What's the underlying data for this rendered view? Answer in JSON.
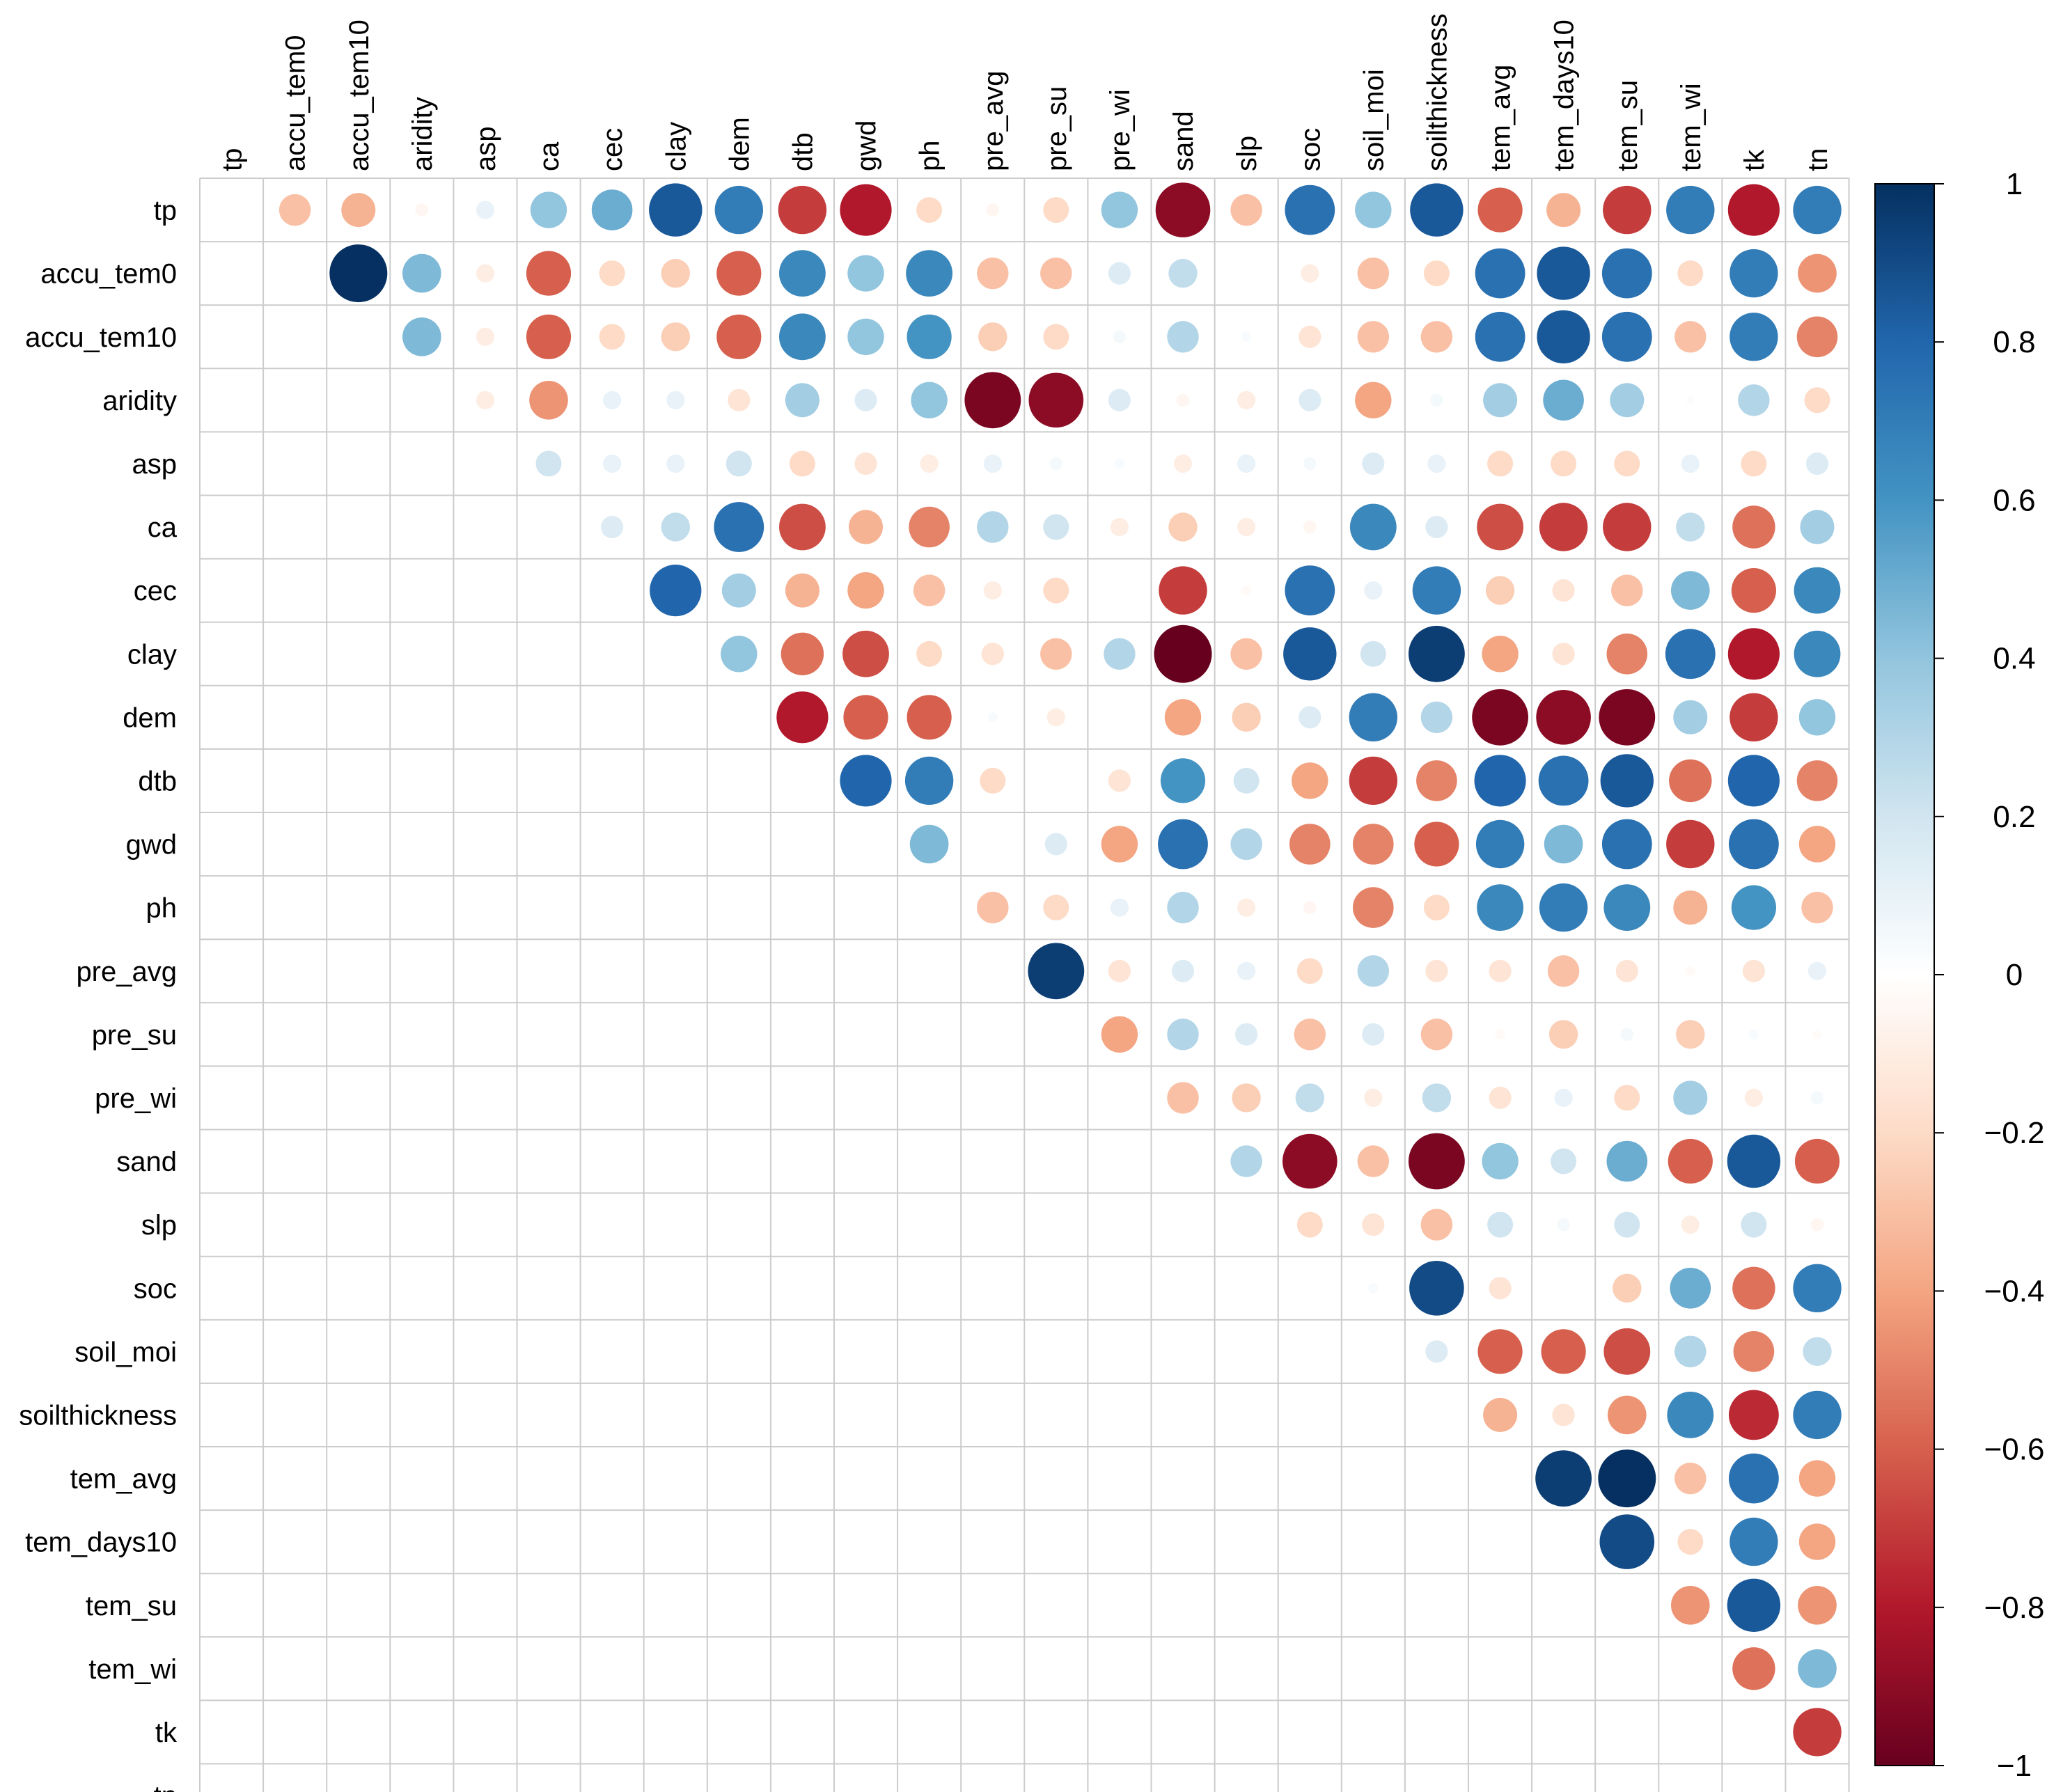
{
  "chart_data": {
    "type": "heatmap",
    "subtype": "correlation-matrix-circles-upper",
    "title": "",
    "variables": [
      "tp",
      "accu_tem0",
      "accu_tem10",
      "aridity",
      "asp",
      "ca",
      "cec",
      "clay",
      "dem",
      "dtb",
      "gwd",
      "ph",
      "pre_avg",
      "pre_su",
      "pre_wi",
      "sand",
      "slp",
      "soc",
      "soil_moi",
      "soilthickness",
      "tem_avg",
      "tem_days10",
      "tem_su",
      "tem_wi",
      "tk",
      "tn"
    ],
    "matrix": [
      [
        1,
        -0.3,
        -0.35,
        -0.05,
        0.1,
        0.4,
        0.5,
        0.85,
        0.7,
        -0.7,
        -0.8,
        -0.2,
        -0.05,
        -0.2,
        0.4,
        -0.9,
        -0.3,
        0.75,
        0.4,
        0.85,
        -0.6,
        -0.35,
        -0.7,
        0.7,
        -0.8,
        0.7
      ],
      [
        -0.3,
        1,
        1,
        0.45,
        -0.1,
        -0.6,
        -0.2,
        -0.25,
        -0.6,
        0.65,
        0.4,
        0.65,
        -0.3,
        -0.3,
        0.15,
        0.25,
        0,
        -0.1,
        -0.3,
        -0.2,
        0.75,
        0.85,
        0.75,
        -0.2,
        0.7,
        -0.45
      ],
      [
        -0.35,
        1,
        1,
        0.45,
        -0.1,
        -0.6,
        -0.2,
        -0.25,
        -0.6,
        0.65,
        0.4,
        0.6,
        -0.25,
        -0.2,
        0.05,
        0.3,
        0.03,
        -0.15,
        -0.3,
        -0.3,
        0.75,
        0.85,
        0.75,
        -0.3,
        0.7,
        -0.5
      ],
      [
        -0.05,
        0.45,
        0.45,
        1,
        -0.1,
        -0.45,
        0.1,
        0.1,
        -0.15,
        0.35,
        0.15,
        0.4,
        -0.95,
        -0.9,
        0.15,
        -0.05,
        -0.1,
        0.15,
        -0.4,
        0.05,
        0.35,
        0.5,
        0.35,
        0.02,
        0.3,
        -0.2
      ],
      [
        0.1,
        -0.1,
        -0.1,
        -0.1,
        1,
        0.2,
        0.1,
        0.1,
        0.2,
        -0.2,
        -0.15,
        -0.1,
        0.1,
        0.05,
        0.03,
        -0.1,
        0.1,
        0.05,
        0.15,
        0.1,
        -0.2,
        -0.2,
        -0.2,
        0.1,
        -0.2,
        0.15
      ],
      [
        0.4,
        -0.6,
        -0.6,
        -0.45,
        0.2,
        1,
        0.15,
        0.25,
        0.75,
        -0.65,
        -0.35,
        -0.5,
        0.3,
        0.2,
        -0.1,
        -0.25,
        -0.1,
        -0.05,
        0.65,
        0.15,
        -0.65,
        -0.7,
        -0.7,
        0.25,
        -0.55,
        0.35
      ],
      [
        0.5,
        -0.2,
        -0.2,
        0.1,
        0.1,
        0.15,
        1,
        0.8,
        0.35,
        -0.35,
        -0.4,
        -0.3,
        -0.1,
        -0.2,
        0,
        -0.7,
        -0.03,
        0.75,
        0.1,
        0.7,
        -0.25,
        -0.15,
        -0.3,
        0.45,
        -0.6,
        0.65
      ],
      [
        0.85,
        -0.25,
        -0.25,
        0.1,
        0.1,
        0.25,
        0.8,
        1,
        0.4,
        -0.55,
        -0.65,
        -0.2,
        -0.15,
        -0.3,
        0.3,
        -1,
        -0.3,
        0.85,
        0.2,
        0.95,
        -0.4,
        -0.15,
        -0.5,
        0.75,
        -0.8,
        0.65
      ],
      [
        0.7,
        -0.6,
        -0.6,
        -0.15,
        0.2,
        0.75,
        0.35,
        0.4,
        1,
        -0.8,
        -0.6,
        -0.6,
        0.03,
        -0.1,
        0,
        -0.4,
        -0.25,
        0.15,
        0.7,
        0.3,
        -0.95,
        -0.9,
        -0.95,
        0.35,
        -0.7,
        0.4
      ],
      [
        -0.7,
        0.65,
        0.65,
        0.35,
        -0.2,
        -0.65,
        -0.35,
        -0.55,
        -0.8,
        1,
        0.8,
        0.7,
        -0.2,
        0,
        -0.15,
        0.6,
        0.2,
        -0.4,
        -0.7,
        -0.5,
        0.8,
        0.75,
        0.85,
        -0.55,
        0.8,
        -0.5
      ],
      [
        -0.8,
        0.4,
        0.4,
        0.15,
        -0.15,
        -0.35,
        -0.4,
        -0.65,
        -0.6,
        0.8,
        1,
        0.45,
        0,
        0.15,
        -0.4,
        0.75,
        0.3,
        -0.5,
        -0.5,
        -0.6,
        0.7,
        0.45,
        0.75,
        -0.7,
        0.75,
        -0.4
      ],
      [
        -0.2,
        0.65,
        0.6,
        0.4,
        -0.1,
        -0.5,
        -0.3,
        -0.2,
        -0.6,
        0.7,
        0.45,
        1,
        -0.3,
        -0.2,
        0.1,
        0.3,
        -0.1,
        -0.05,
        -0.5,
        -0.2,
        0.65,
        0.7,
        0.65,
        -0.35,
        0.6,
        -0.3
      ],
      [
        -0.05,
        -0.3,
        -0.25,
        -0.95,
        0.1,
        0.3,
        -0.1,
        -0.15,
        0.03,
        -0.2,
        0,
        -0.3,
        1,
        0.95,
        -0.15,
        0.15,
        0.1,
        -0.2,
        0.3,
        -0.15,
        -0.15,
        -0.3,
        -0.15,
        -0.03,
        -0.15,
        0.1
      ],
      [
        -0.2,
        -0.3,
        -0.2,
        -0.9,
        0.05,
        0.2,
        -0.2,
        -0.3,
        -0.1,
        0,
        0.15,
        -0.2,
        0.95,
        1,
        -0.4,
        0.3,
        0.15,
        -0.3,
        0.15,
        -0.3,
        -0.03,
        -0.25,
        0.05,
        -0.25,
        0.03,
        -0.02
      ],
      [
        0.4,
        0.15,
        0.05,
        0.15,
        0.03,
        -0.1,
        0,
        0.3,
        0,
        -0.15,
        -0.4,
        0.1,
        -0.15,
        -0.4,
        1,
        -0.3,
        -0.25,
        0.25,
        -0.1,
        0.25,
        -0.15,
        0.1,
        -0.2,
        0.35,
        -0.1,
        0.05
      ],
      [
        -0.9,
        0.25,
        0.3,
        -0.05,
        -0.1,
        -0.25,
        -0.7,
        -1,
        -0.4,
        0.6,
        0.75,
        0.3,
        0.15,
        0.3,
        -0.3,
        1,
        0.3,
        -0.9,
        -0.3,
        -0.95,
        0.4,
        0.2,
        0.5,
        -0.6,
        0.85,
        -0.6
      ],
      [
        -0.3,
        0,
        0.03,
        -0.1,
        0.1,
        -0.1,
        -0.03,
        -0.3,
        -0.25,
        0.2,
        0.3,
        -0.1,
        0.1,
        0.15,
        -0.25,
        0.3,
        1,
        -0.2,
        -0.15,
        -0.3,
        0.2,
        0.05,
        0.2,
        -0.1,
        0.2,
        -0.05
      ],
      [
        0.75,
        -0.1,
        -0.15,
        0.15,
        0.05,
        -0.05,
        0.75,
        0.85,
        0.15,
        -0.4,
        -0.5,
        -0.05,
        -0.2,
        -0.3,
        0.25,
        -0.9,
        -0.2,
        1,
        0.03,
        0.9,
        -0.15,
        0,
        -0.25,
        0.5,
        -0.55,
        0.7
      ],
      [
        0.4,
        -0.3,
        -0.3,
        -0.4,
        0.15,
        0.65,
        0.1,
        0.2,
        0.7,
        -0.7,
        -0.5,
        -0.5,
        0.3,
        0.15,
        -0.1,
        -0.3,
        -0.15,
        0.03,
        1,
        0.15,
        -0.6,
        -0.6,
        -0.65,
        0.3,
        -0.5,
        0.25
      ],
      [
        0.85,
        -0.2,
        -0.3,
        0.05,
        0.1,
        0.15,
        0.7,
        0.95,
        0.3,
        -0.5,
        -0.6,
        -0.2,
        -0.15,
        -0.3,
        0.25,
        -0.95,
        -0.3,
        0.9,
        0.15,
        1,
        -0.35,
        -0.15,
        -0.45,
        0.65,
        -0.75,
        0.7
      ],
      [
        -0.6,
        0.75,
        0.75,
        0.35,
        -0.2,
        -0.65,
        -0.25,
        -0.4,
        -0.95,
        0.8,
        0.7,
        0.65,
        -0.15,
        -0.03,
        -0.15,
        0.4,
        0.2,
        -0.15,
        -0.6,
        -0.35,
        1,
        0.95,
        1,
        -0.3,
        0.75,
        -0.4
      ],
      [
        -0.35,
        0.85,
        0.85,
        0.5,
        -0.2,
        -0.7,
        -0.15,
        -0.15,
        -0.9,
        0.75,
        0.45,
        0.7,
        -0.3,
        -0.25,
        0.1,
        0.2,
        0.05,
        0,
        -0.6,
        -0.15,
        0.95,
        1,
        0.9,
        -0.2,
        0.7,
        -0.4
      ],
      [
        -0.7,
        0.75,
        0.75,
        0.35,
        -0.2,
        -0.7,
        -0.3,
        -0.5,
        -0.95,
        0.85,
        0.75,
        0.65,
        -0.15,
        0.05,
        -0.2,
        0.5,
        0.2,
        -0.25,
        -0.65,
        -0.45,
        1,
        0.9,
        1,
        -0.45,
        0.85,
        -0.45
      ],
      [
        0.7,
        -0.2,
        -0.3,
        0.02,
        0.1,
        0.25,
        0.45,
        0.75,
        0.35,
        -0.55,
        -0.7,
        -0.35,
        -0.03,
        -0.25,
        0.35,
        -0.6,
        -0.1,
        0.5,
        0.3,
        0.65,
        -0.3,
        -0.2,
        -0.45,
        1,
        -0.55,
        0.45
      ],
      [
        -0.8,
        0.7,
        0.7,
        0.3,
        -0.2,
        -0.55,
        -0.6,
        -0.8,
        -0.7,
        0.8,
        0.75,
        0.6,
        -0.15,
        0.03,
        -0.1,
        0.85,
        0.2,
        -0.55,
        -0.5,
        -0.75,
        0.75,
        0.7,
        0.85,
        -0.55,
        1,
        -0.7
      ],
      [
        0.7,
        -0.45,
        -0.5,
        -0.2,
        0.15,
        0.35,
        0.65,
        0.65,
        0.4,
        -0.5,
        -0.4,
        -0.3,
        0.1,
        -0.02,
        0.05,
        -0.6,
        -0.05,
        0.7,
        0.25,
        0.7,
        -0.4,
        -0.4,
        -0.45,
        0.45,
        -0.7,
        1
      ]
    ],
    "display": "upper triangle, diagonal omitted; circle area and colour encode correlation",
    "colorbar": {
      "ticks": [
        "1",
        "0.8",
        "0.6",
        "0.4",
        "0.2",
        "0",
        "−0.2",
        "−0.4",
        "−0.6",
        "−0.8",
        "−1"
      ],
      "range": [
        -1,
        1
      ]
    },
    "colors": {
      "neg_strong": "#67001f",
      "neg": "#d6604d",
      "neg_light": "#fddbc7",
      "zero": "#ffffff",
      "pos_light": "#d1e5f0",
      "pos": "#4393c3",
      "pos_strong": "#053061",
      "grid": "#cccccc"
    },
    "xlabel": "",
    "ylabel": ""
  }
}
